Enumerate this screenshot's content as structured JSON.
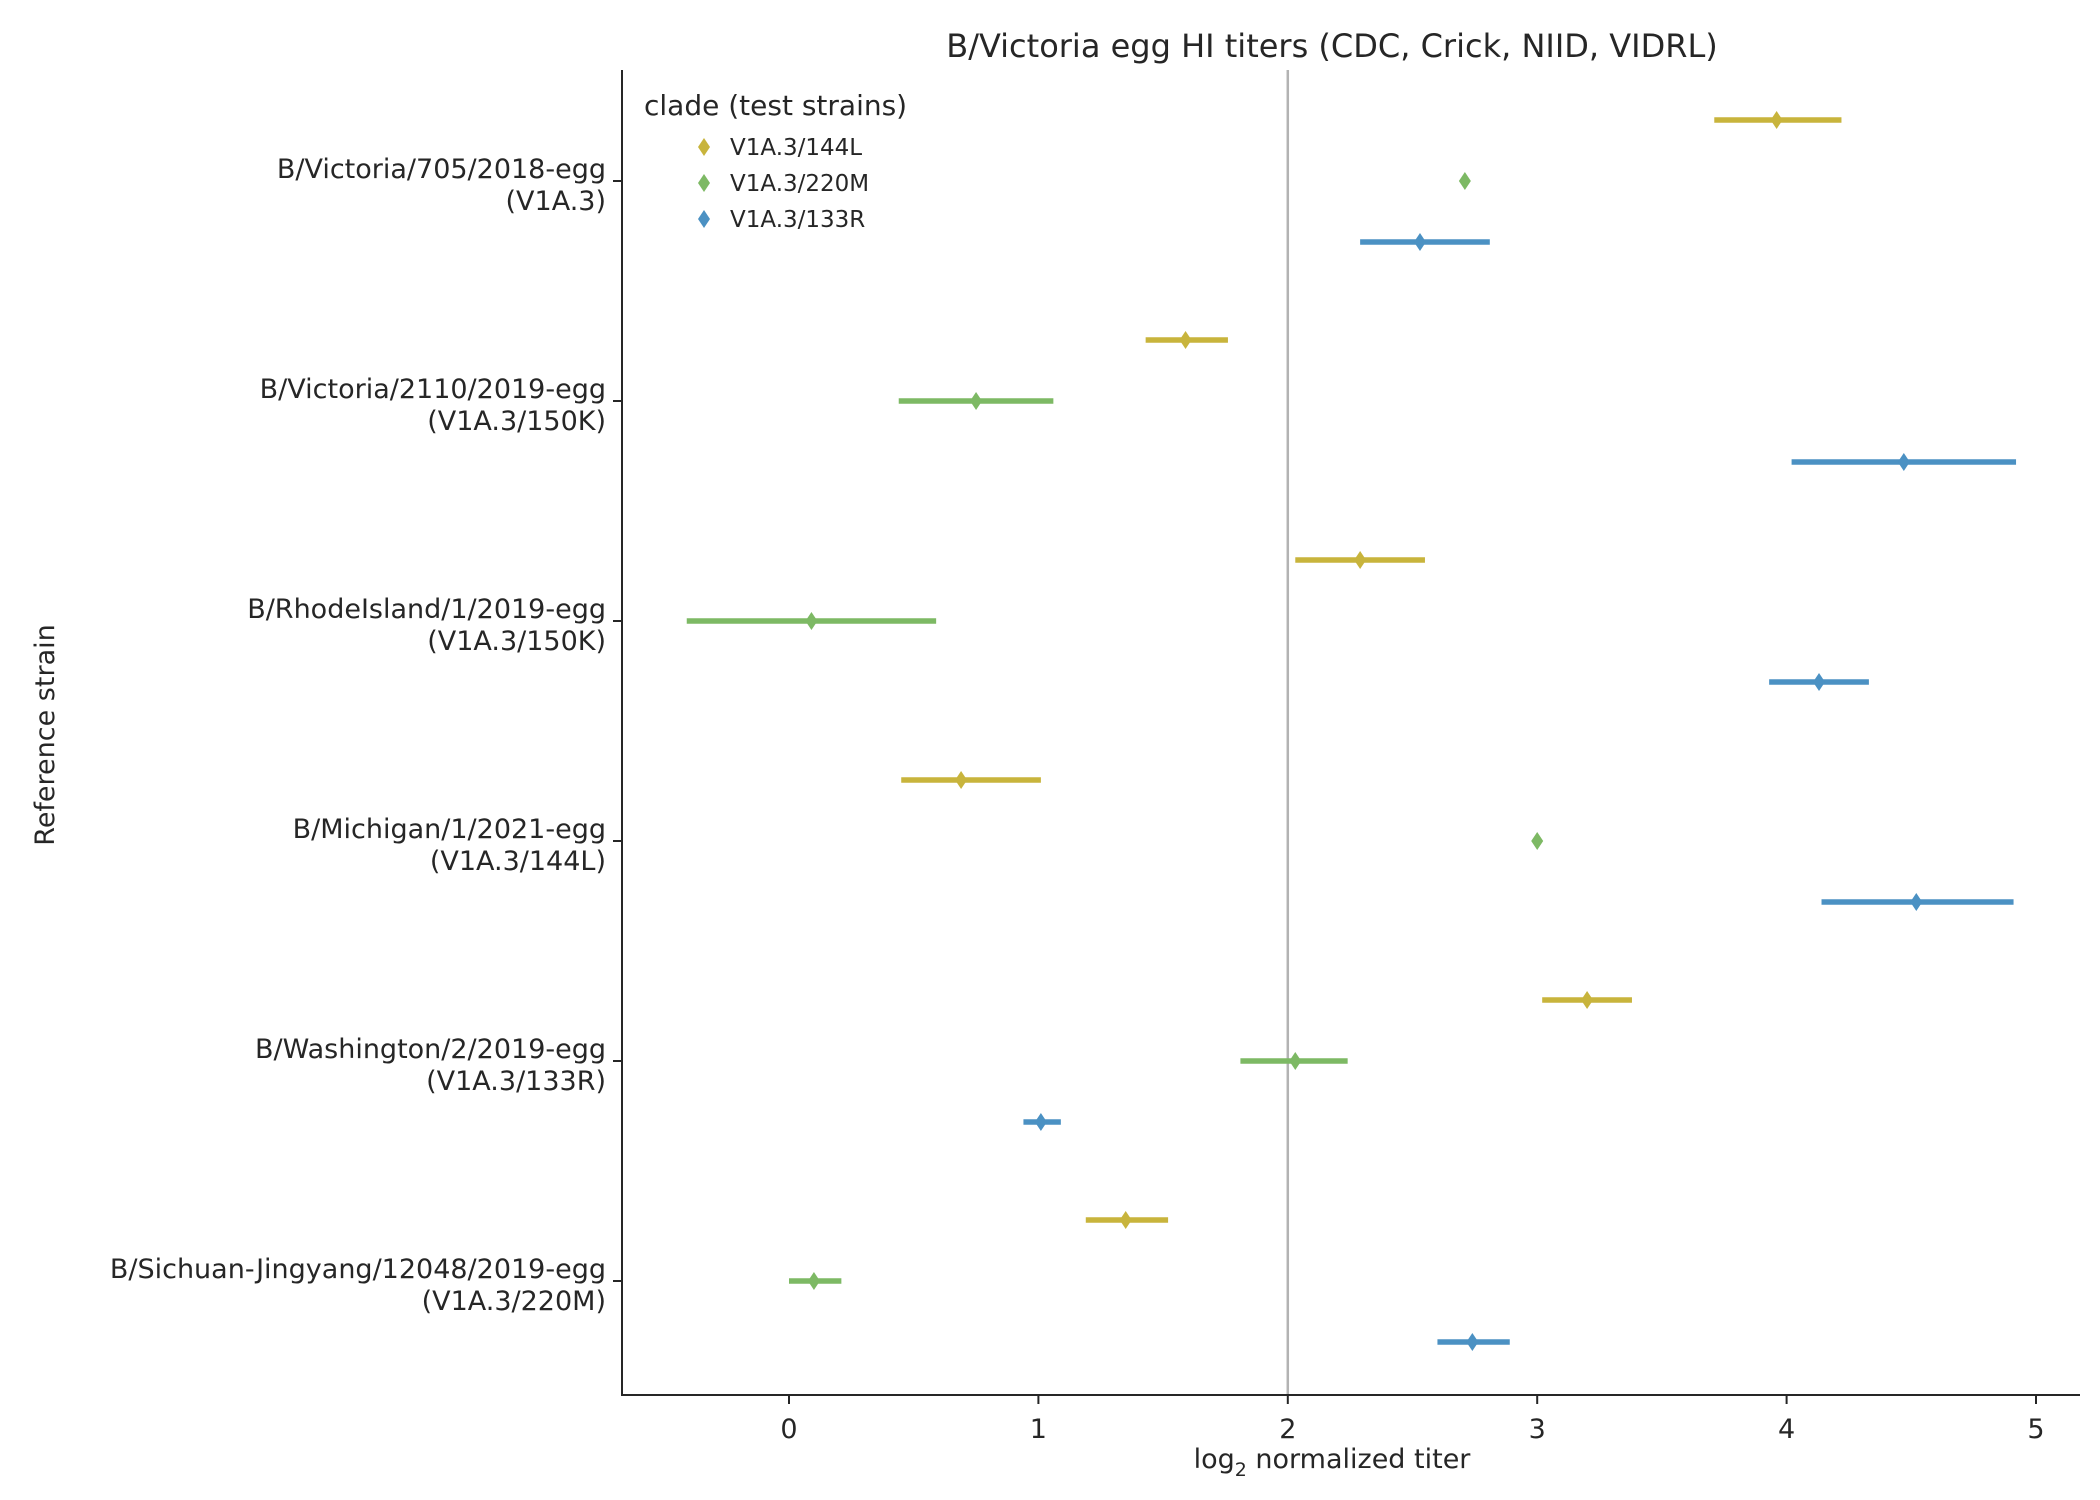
{
  "chart_data": {
    "type": "scatter",
    "title": "B/Victoria egg HI titers (CDC, Crick, NIID, VIDRL)",
    "xlabel": "log",
    "xlabel_sub": "2",
    "xlabel_rest": " normalized titer",
    "ylabel": "Reference strain",
    "xlim": [
      -0.67,
      5.17
    ],
    "x_ticks": [
      0,
      1,
      2,
      3,
      4,
      5
    ],
    "reference_line_x": 2,
    "legend": {
      "title": "clade (test strains)",
      "placement": "top-left"
    },
    "series": [
      {
        "name": "V1A.3/144L",
        "color": "#c8b43c"
      },
      {
        "name": "V1A.3/220M",
        "color": "#7db964"
      },
      {
        "name": "V1A.3/133R",
        "color": "#4b91c3"
      }
    ],
    "reference_strains": [
      {
        "name": "B/Victoria/705/2018-egg",
        "clade": "(V1A.3)",
        "points": [
          {
            "series": "V1A.3/144L",
            "x": 3.96,
            "lo": 3.71,
            "hi": 4.22
          },
          {
            "series": "V1A.3/220M",
            "x": 2.71,
            "lo": 2.71,
            "hi": 2.71
          },
          {
            "series": "V1A.3/133R",
            "x": 2.53,
            "lo": 2.29,
            "hi": 2.81
          }
        ]
      },
      {
        "name": "B/Victoria/2110/2019-egg",
        "clade": "(V1A.3/150K)",
        "points": [
          {
            "series": "V1A.3/144L",
            "x": 1.59,
            "lo": 1.43,
            "hi": 1.76
          },
          {
            "series": "V1A.3/220M",
            "x": 0.75,
            "lo": 0.44,
            "hi": 1.06
          },
          {
            "series": "V1A.3/133R",
            "x": 4.47,
            "lo": 4.02,
            "hi": 4.92
          }
        ]
      },
      {
        "name": "B/RhodeIsland/1/2019-egg",
        "clade": "(V1A.3/150K)",
        "points": [
          {
            "series": "V1A.3/144L",
            "x": 2.29,
            "lo": 2.03,
            "hi": 2.55
          },
          {
            "series": "V1A.3/220M",
            "x": 0.09,
            "lo": -0.41,
            "hi": 0.59
          },
          {
            "series": "V1A.3/133R",
            "x": 4.13,
            "lo": 3.93,
            "hi": 4.33
          }
        ]
      },
      {
        "name": "B/Michigan/1/2021-egg",
        "clade": "(V1A.3/144L)",
        "points": [
          {
            "series": "V1A.3/144L",
            "x": 0.69,
            "lo": 0.45,
            "hi": 1.01
          },
          {
            "series": "V1A.3/220M",
            "x": 3.0,
            "lo": 3.0,
            "hi": 3.0
          },
          {
            "series": "V1A.3/133R",
            "x": 4.52,
            "lo": 4.14,
            "hi": 4.91
          }
        ]
      },
      {
        "name": "B/Washington/2/2019-egg",
        "clade": "(V1A.3/133R)",
        "points": [
          {
            "series": "V1A.3/144L",
            "x": 3.2,
            "lo": 3.02,
            "hi": 3.38
          },
          {
            "series": "V1A.3/220M",
            "x": 2.03,
            "lo": 1.81,
            "hi": 2.24
          },
          {
            "series": "V1A.3/133R",
            "x": 1.01,
            "lo": 0.94,
            "hi": 1.09
          }
        ]
      },
      {
        "name": "B/Sichuan-Jingyang/12048/2019-egg",
        "clade": "(V1A.3/220M)",
        "points": [
          {
            "series": "V1A.3/144L",
            "x": 1.35,
            "lo": 1.19,
            "hi": 1.52
          },
          {
            "series": "V1A.3/220M",
            "x": 0.1,
            "lo": 0.0,
            "hi": 0.21
          },
          {
            "series": "V1A.3/133R",
            "x": 2.74,
            "lo": 2.6,
            "hi": 2.89
          }
        ]
      }
    ]
  }
}
